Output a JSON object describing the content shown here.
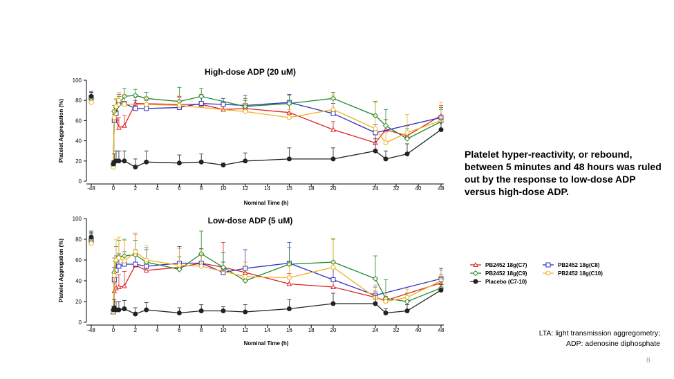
{
  "chart_data": [
    {
      "type": "line",
      "title": "High-dose ADP (20 uM)",
      "xlabel": "Nominal Time (h)",
      "ylabel": "Platelet Aggregation (%)",
      "ylim": [
        0,
        100
      ],
      "yticks": [
        "0",
        "20",
        "40",
        "60",
        "80",
        "100"
      ],
      "xticks": [
        "-48",
        "0",
        "2",
        "4",
        "6",
        "8",
        "10",
        "12",
        "14",
        "16",
        "18",
        "20",
        "24",
        "32",
        "40",
        "48"
      ],
      "series": [
        {
          "name": "PB2452 18g(C7)",
          "color": "#e02020",
          "marker": "triangle",
          "x": [
            -48,
            0,
            0.083,
            0.25,
            0.5,
            1,
            2,
            6,
            8,
            10,
            12,
            16,
            20,
            24,
            28,
            36,
            48
          ],
          "y": [
            82,
            17,
            60,
            62,
            53,
            55,
            77,
            76,
            76,
            71,
            72,
            68,
            51,
            38,
            51,
            45,
            65
          ],
          "err": [
            6,
            3,
            6,
            8,
            10,
            10,
            6,
            8,
            10,
            6,
            8,
            8,
            8,
            8,
            10,
            10,
            10
          ]
        },
        {
          "name": "PB2452 18g(C8)",
          "color": "#2d2dc0",
          "marker": "square",
          "x": [
            -48,
            0,
            0.083,
            0.25,
            0.5,
            1,
            2,
            3,
            6,
            8,
            10,
            12,
            16,
            20,
            24,
            48
          ],
          "y": [
            83,
            16,
            60,
            67,
            78,
            77,
            72,
            72,
            73,
            77,
            76,
            75,
            78,
            67,
            48,
            63
          ],
          "err": [
            6,
            3,
            8,
            8,
            8,
            8,
            8,
            8,
            10,
            8,
            6,
            10,
            8,
            10,
            8,
            10
          ]
        },
        {
          "name": "PB2452 18g(C9)",
          "color": "#1f8a2a",
          "marker": "diamond",
          "x": [
            -48,
            0,
            0.083,
            0.25,
            0.5,
            1,
            2,
            3,
            6,
            8,
            12,
            16,
            20,
            24,
            28,
            36,
            48
          ],
          "y": [
            82,
            16,
            69,
            73,
            76,
            84,
            85,
            82,
            79,
            84,
            74,
            77,
            82,
            65,
            55,
            42,
            59
          ],
          "err": [
            6,
            3,
            6,
            8,
            8,
            8,
            6,
            6,
            14,
            8,
            8,
            8,
            6,
            14,
            16,
            10,
            12
          ]
        },
        {
          "name": "PB2452 18g(C10)",
          "color": "#f0b020",
          "marker": "circle-open",
          "x": [
            -48,
            0,
            0.083,
            0.25,
            0.5,
            1,
            3,
            6,
            12,
            16,
            20,
            24,
            28,
            36,
            48
          ],
          "y": [
            78,
            14,
            63,
            74,
            80,
            76,
            76,
            75,
            69,
            63,
            71,
            52,
            38,
            48,
            60
          ],
          "err": [
            6,
            3,
            8,
            8,
            8,
            10,
            8,
            10,
            8,
            8,
            14,
            26,
            10,
            18,
            18
          ]
        },
        {
          "name": "Placebo (C7-10)",
          "color": "#222222",
          "marker": "circle-filled",
          "x": [
            -48,
            0,
            0.083,
            0.25,
            0.5,
            1,
            2,
            3,
            6,
            8,
            10,
            12,
            16,
            20,
            24,
            28,
            36,
            48
          ],
          "y": [
            84,
            17,
            19,
            20,
            20,
            20,
            14,
            19,
            18,
            19,
            16,
            20,
            22,
            22,
            30,
            22,
            27,
            51
          ],
          "err": [
            4,
            3,
            8,
            10,
            10,
            10,
            8,
            11,
            8,
            8,
            2,
            8,
            11,
            11,
            12,
            8,
            10,
            10
          ]
        }
      ]
    },
    {
      "type": "line",
      "title": "Low-dose ADP (5 uM)",
      "xlabel": "Nominal Time (h)",
      "ylabel": "Platelet Aggregation (%)",
      "ylim": [
        0,
        100
      ],
      "yticks": [
        "0",
        "20",
        "40",
        "60",
        "80",
        "100"
      ],
      "xticks": [
        "-48",
        "0",
        "2",
        "4",
        "6",
        "8",
        "10",
        "12",
        "14",
        "16",
        "18",
        "20",
        "24",
        "32",
        "40",
        "48"
      ],
      "series": [
        {
          "name": "PB2452 18g(C7)",
          "color": "#e02020",
          "marker": "triangle",
          "x": [
            -48,
            0,
            0.083,
            0.25,
            0.5,
            1,
            2,
            3,
            6,
            8,
            10,
            12,
            16,
            20,
            24,
            28,
            48
          ],
          "y": [
            78,
            10,
            30,
            33,
            34,
            35,
            55,
            50,
            53,
            57,
            53,
            48,
            37,
            34,
            24,
            21,
            38
          ],
          "err": [
            6,
            3,
            8,
            10,
            12,
            14,
            30,
            8,
            10,
            10,
            24,
            10,
            10,
            8,
            6,
            4,
            8
          ]
        },
        {
          "name": "PB2452 18g(C8)",
          "color": "#2d2dc0",
          "marker": "square",
          "x": [
            -48,
            0,
            0.083,
            0.25,
            0.5,
            1,
            2,
            3,
            6,
            8,
            10,
            12,
            16,
            20,
            24,
            48
          ],
          "y": [
            79,
            10,
            41,
            50,
            54,
            56,
            56,
            54,
            57,
            57,
            48,
            52,
            57,
            41,
            26,
            42
          ],
          "err": [
            8,
            3,
            12,
            14,
            12,
            12,
            14,
            16,
            16,
            14,
            10,
            18,
            20,
            16,
            8,
            10
          ]
        },
        {
          "name": "PB2452 18g(C9)",
          "color": "#1f8a2a",
          "marker": "diamond",
          "x": [
            -48,
            0,
            0.083,
            0.25,
            0.5,
            1,
            2,
            3,
            6,
            8,
            10,
            12,
            16,
            20,
            24,
            28,
            36,
            48
          ],
          "y": [
            80,
            10,
            48,
            59,
            63,
            64,
            65,
            58,
            51,
            66,
            53,
            40,
            56,
            58,
            42,
            23,
            20,
            33
          ],
          "err": [
            8,
            3,
            14,
            14,
            16,
            16,
            14,
            14,
            12,
            22,
            14,
            10,
            16,
            22,
            22,
            18,
            8,
            10
          ]
        },
        {
          "name": "PB2452 18g(C10)",
          "color": "#f0b020",
          "marker": "circle-open",
          "x": [
            -48,
            0,
            0.083,
            0.25,
            0.5,
            1,
            2,
            3,
            6,
            8,
            12,
            16,
            20,
            24,
            28,
            36,
            48
          ],
          "y": [
            76,
            10,
            45,
            60,
            62,
            59,
            68,
            60,
            55,
            54,
            44,
            43,
            53,
            24,
            20,
            24,
            40
          ],
          "err": [
            8,
            3,
            14,
            20,
            20,
            20,
            18,
            14,
            16,
            16,
            14,
            14,
            28,
            12,
            8,
            8,
            10
          ]
        },
        {
          "name": "Placebo (C7-10)",
          "color": "#222222",
          "marker": "circle-filled",
          "x": [
            -48,
            0,
            0.083,
            0.25,
            0.5,
            1,
            2,
            3,
            6,
            8,
            10,
            12,
            16,
            20,
            24,
            28,
            36,
            48
          ],
          "y": [
            82,
            12,
            14,
            12,
            12,
            13,
            8,
            12,
            9,
            11,
            11,
            10,
            13,
            18,
            18,
            9,
            11,
            31
          ],
          "err": [
            4,
            3,
            8,
            8,
            8,
            8,
            6,
            7,
            5,
            6,
            4,
            7,
            9,
            10,
            8,
            4,
            6,
            8
          ]
        }
      ],
      "legend_position": "right"
    }
  ],
  "note": "Platelet hyper-reactivity, or rebound, between 5 minutes and 48 hours was ruled out by the response to low-dose ADP versus high-dose ADP.",
  "footnote": {
    "line1": "LTA: light transmission aggregometry;",
    "line2": "ADP: adenosine diphosphate"
  },
  "page_number": "8"
}
